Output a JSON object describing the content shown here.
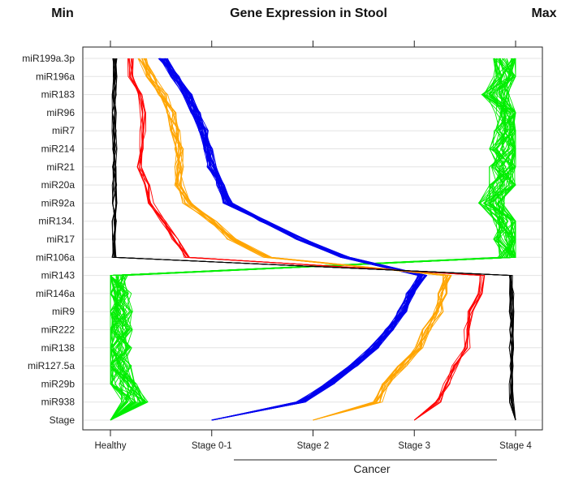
{
  "chart_data": {
    "type": "line",
    "subtype": "parallel-coordinates",
    "title": "Gene Expression in Stool",
    "scale_min_label": "Min",
    "scale_max_label": "Max",
    "x_range": [
      0,
      1
    ],
    "x_ticks": [
      "Healthy",
      "Stage 0-1",
      "Stage 2",
      "Stage 3",
      "Stage 4"
    ],
    "group_annotation": "Cancer",
    "grid": true,
    "variables": [
      "miR199a.3p",
      "miR196a",
      "miR183",
      "miR96",
      "miR7",
      "miR214",
      "miR21",
      "miR20a",
      "miR92a",
      "miR134.",
      "miR17",
      "miR106a",
      "miR143",
      "miR146a",
      "miR9",
      "miR222",
      "miR138",
      "miR127.5a",
      "miR29b",
      "miR938",
      "Stage"
    ],
    "series": [
      {
        "name": "Healthy",
        "color": "#00ee00",
        "values": [
          0.98,
          0.98,
          0.95,
          0.98,
          0.98,
          0.97,
          0.97,
          0.97,
          0.94,
          0.98,
          0.98,
          0.99,
          0.01,
          0.02,
          0.02,
          0.02,
          0.02,
          0.02,
          0.03,
          0.06,
          0.0
        ]
      },
      {
        "name": "Stage 0-1",
        "color": "#0000ee",
        "values": [
          0.13,
          0.16,
          0.19,
          0.21,
          0.23,
          0.24,
          0.25,
          0.27,
          0.29,
          0.38,
          0.47,
          0.58,
          0.77,
          0.74,
          0.72,
          0.69,
          0.65,
          0.6,
          0.54,
          0.47,
          0.25
        ]
      },
      {
        "name": "Stage 2",
        "color": "#ffa500",
        "values": [
          0.08,
          0.1,
          0.13,
          0.15,
          0.16,
          0.17,
          0.17,
          0.17,
          0.19,
          0.25,
          0.3,
          0.39,
          0.83,
          0.82,
          0.81,
          0.78,
          0.76,
          0.72,
          0.68,
          0.66,
          0.5
        ]
      },
      {
        "name": "Stage 3",
        "color": "#ff0000",
        "values": [
          0.05,
          0.05,
          0.07,
          0.08,
          0.08,
          0.08,
          0.07,
          0.09,
          0.1,
          0.13,
          0.16,
          0.19,
          0.92,
          0.91,
          0.89,
          0.88,
          0.88,
          0.85,
          0.83,
          0.81,
          0.75
        ]
      },
      {
        "name": "Stage 4",
        "color": "#000000",
        "values": [
          0.01,
          0.01,
          0.01,
          0.01,
          0.01,
          0.01,
          0.01,
          0.01,
          0.01,
          0.01,
          0.01,
          0.01,
          0.99,
          0.99,
          0.99,
          0.99,
          0.99,
          0.99,
          0.99,
          0.99,
          1.0
        ]
      }
    ]
  }
}
